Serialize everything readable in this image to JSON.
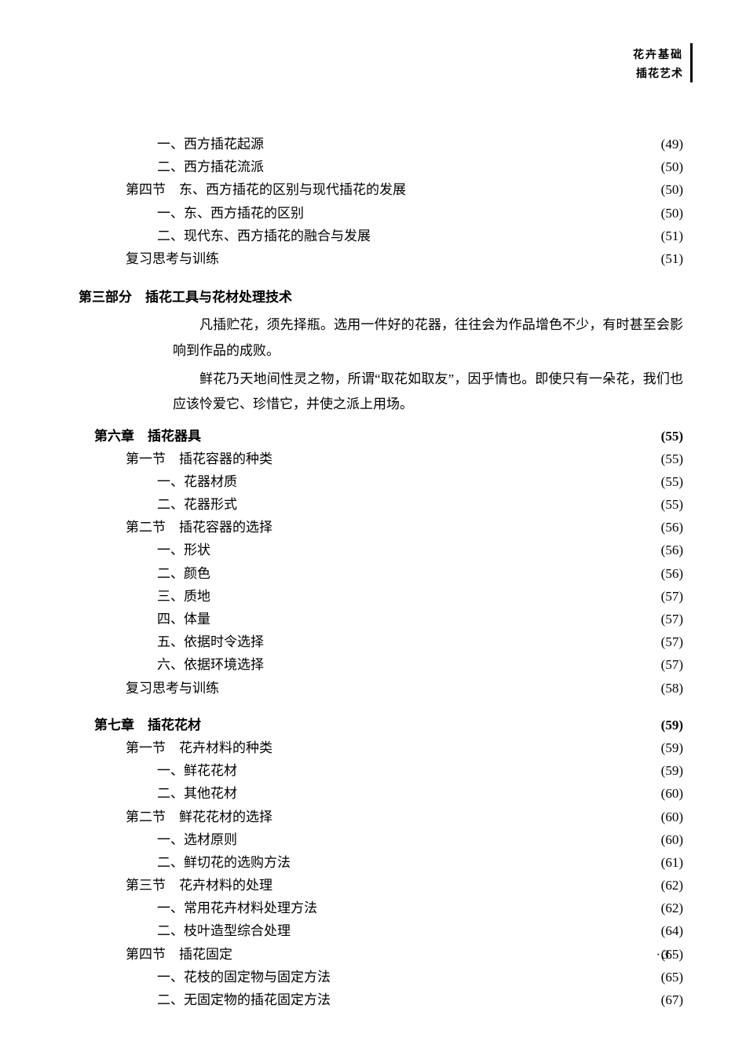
{
  "header": {
    "line1": "花卉基础",
    "line2": "插花艺术"
  },
  "toc_top": [
    {
      "indent": 2,
      "label": "一、西方插花起源",
      "page": "(49)"
    },
    {
      "indent": 2,
      "label": "二、西方插花流派",
      "page": "(50)"
    },
    {
      "indent": 1,
      "label": "第四节　东、西方插花的区别与现代插花的发展",
      "page": "(50)"
    },
    {
      "indent": 2,
      "label": "一、东、西方插花的区别",
      "page": "(50)"
    },
    {
      "indent": 2,
      "label": "二、现代东、西方插花的融合与发展",
      "page": "(51)"
    },
    {
      "indent": 1,
      "label": "复习思考与训练",
      "page": "(51)"
    }
  ],
  "part3": {
    "title": "第三部分　插花工具与花材处理技术",
    "intro": [
      "凡插贮花，须先择瓶。选用一件好的花器，往往会为作品增色不少，有时甚至会影响到作品的成败。",
      "鲜花乃天地间性灵之物，所谓“取花如取友”，因乎情也。即使只有一朵花，我们也应该怜爱它、珍惜它，并使之派上用场。"
    ]
  },
  "toc_ch6": [
    {
      "indent": 0,
      "label": "第六章　插花器具",
      "page": "(55)",
      "bold": true
    },
    {
      "indent": 1,
      "label": "第一节　插花容器的种类",
      "page": "(55)"
    },
    {
      "indent": 2,
      "label": "一、花器材质",
      "page": "(55)"
    },
    {
      "indent": 2,
      "label": "二、花器形式",
      "page": "(55)"
    },
    {
      "indent": 1,
      "label": "第二节　插花容器的选择",
      "page": "(56)"
    },
    {
      "indent": 2,
      "label": "一、形状",
      "page": "(56)"
    },
    {
      "indent": 2,
      "label": "二、颜色",
      "page": "(56)"
    },
    {
      "indent": 2,
      "label": "三、质地",
      "page": "(57)"
    },
    {
      "indent": 2,
      "label": "四、体量",
      "page": "(57)"
    },
    {
      "indent": 2,
      "label": "五、依据时令选择",
      "page": "(57)"
    },
    {
      "indent": 2,
      "label": "六、依据环境选择",
      "page": "(57)"
    },
    {
      "indent": 1,
      "label": "复习思考与训练",
      "page": "(58)"
    }
  ],
  "toc_ch7": [
    {
      "indent": 0,
      "label": "第七章　插花花材",
      "page": "(59)",
      "bold": true
    },
    {
      "indent": 1,
      "label": "第一节　花卉材料的种类",
      "page": "(59)"
    },
    {
      "indent": 2,
      "label": "一、鲜花花材",
      "page": "(59)"
    },
    {
      "indent": 2,
      "label": "二、其他花材",
      "page": "(60)"
    },
    {
      "indent": 1,
      "label": "第二节　鲜花花材的选择",
      "page": "(60)"
    },
    {
      "indent": 2,
      "label": "一、选材原则",
      "page": "(60)"
    },
    {
      "indent": 2,
      "label": "二、鲜切花的选购方法",
      "page": "(61)"
    },
    {
      "indent": 1,
      "label": "第三节　花卉材料的处理",
      "page": "(62)"
    },
    {
      "indent": 2,
      "label": "一、常用花卉材料处理方法",
      "page": "(62)"
    },
    {
      "indent": 2,
      "label": "二、枝叶造型综合处理",
      "page": "(64)"
    },
    {
      "indent": 1,
      "label": "第四节　插花固定",
      "page": "(65)"
    },
    {
      "indent": 2,
      "label": "一、花枝的固定物与固定方法",
      "page": "(65)"
    },
    {
      "indent": 2,
      "label": "二、无固定物的插花固定方法",
      "page": "(67)"
    }
  ],
  "page_number": "· 3 ·"
}
